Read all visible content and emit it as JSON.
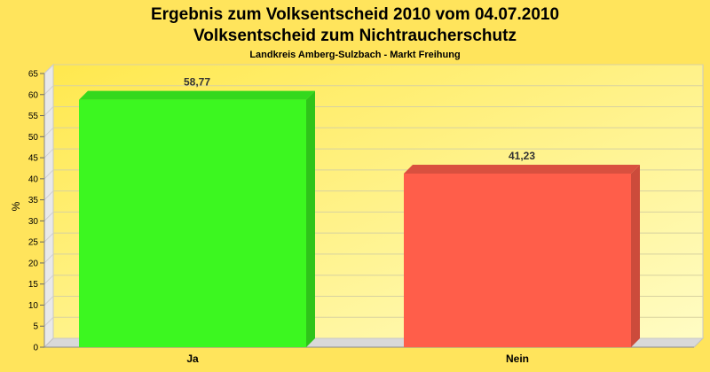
{
  "chart_data": {
    "type": "bar",
    "title": "Ergebnis zum Volksentscheid 2010 vom 04.07.2010",
    "title2": "Volksentscheid zum Nichtraucherschutz",
    "subtitle": "Landkreis Amberg-Sulzbach - Markt Freihung",
    "xlabel": "",
    "ylabel": "%",
    "ylim": [
      0,
      65
    ],
    "yticks": [
      "0",
      "5",
      "10",
      "15",
      "20",
      "25",
      "30",
      "35",
      "40",
      "45",
      "50",
      "55",
      "60",
      "65"
    ],
    "ytick_values": [
      0,
      5,
      10,
      15,
      20,
      25,
      30,
      35,
      40,
      45,
      50,
      55,
      60,
      65
    ],
    "categories": [
      "Ja",
      "Nein"
    ],
    "values": [
      58.77,
      41.23
    ],
    "value_labels": [
      "58,77",
      "41,23"
    ],
    "colors": [
      "#3cf720",
      "#ff5e4a"
    ],
    "side_colors": [
      "#2fc41a",
      "#cc4b3b"
    ],
    "top_colors": [
      "#34d81d",
      "#d9503f"
    ],
    "grid": true,
    "legend": "none",
    "background": "#ffe45c",
    "plot_background": "#fff8b0"
  }
}
